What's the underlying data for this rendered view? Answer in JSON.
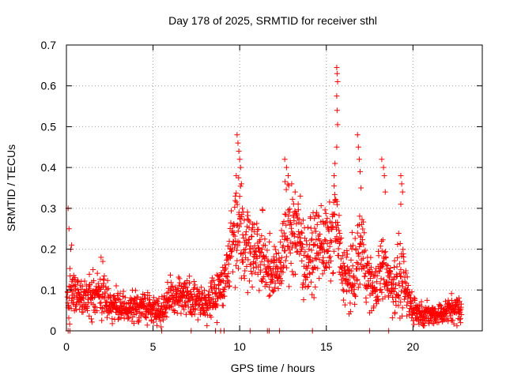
{
  "chart_data": {
    "type": "scatter",
    "title": "Day 178 of 2025, SRMTID for receiver sthl",
    "xlabel": "GPS time / hours",
    "ylabel": "SRMTID / TECUs",
    "xlim": [
      0,
      24
    ],
    "ylim": [
      0,
      0.7
    ],
    "x_ticks": [
      "0",
      "5",
      "10",
      "15",
      "20"
    ],
    "y_ticks": [
      "0",
      "0.1",
      "0.2",
      "0.3",
      "0.4",
      "0.5",
      "0.6",
      "0.7"
    ],
    "grid": true,
    "marker": "plus",
    "color": "#ff0000",
    "profile": [
      [
        0.0,
        0.07,
        0.03
      ],
      [
        0.3,
        0.1,
        0.04
      ],
      [
        0.6,
        0.08,
        0.03
      ],
      [
        1.0,
        0.08,
        0.025
      ],
      [
        1.5,
        0.085,
        0.03
      ],
      [
        2.0,
        0.09,
        0.03
      ],
      [
        2.5,
        0.07,
        0.025
      ],
      [
        3.0,
        0.055,
        0.02
      ],
      [
        3.5,
        0.05,
        0.02
      ],
      [
        4.0,
        0.06,
        0.02
      ],
      [
        4.5,
        0.06,
        0.02
      ],
      [
        5.0,
        0.05,
        0.02
      ],
      [
        5.5,
        0.05,
        0.02
      ],
      [
        6.0,
        0.08,
        0.025
      ],
      [
        6.5,
        0.09,
        0.025
      ],
      [
        7.0,
        0.085,
        0.025
      ],
      [
        7.5,
        0.07,
        0.025
      ],
      [
        8.0,
        0.07,
        0.025
      ],
      [
        8.5,
        0.08,
        0.03
      ],
      [
        9.0,
        0.11,
        0.035
      ],
      [
        9.5,
        0.2,
        0.05
      ],
      [
        9.9,
        0.28,
        0.08
      ],
      [
        10.3,
        0.22,
        0.06
      ],
      [
        10.8,
        0.2,
        0.05
      ],
      [
        11.3,
        0.18,
        0.05
      ],
      [
        11.8,
        0.15,
        0.04
      ],
      [
        12.2,
        0.14,
        0.03
      ],
      [
        12.6,
        0.22,
        0.07
      ],
      [
        13.0,
        0.26,
        0.07
      ],
      [
        13.4,
        0.23,
        0.06
      ],
      [
        13.8,
        0.17,
        0.05
      ],
      [
        14.2,
        0.19,
        0.05
      ],
      [
        14.7,
        0.22,
        0.05
      ],
      [
        15.2,
        0.2,
        0.05
      ],
      [
        15.5,
        0.28,
        0.06
      ],
      [
        15.9,
        0.15,
        0.04
      ],
      [
        16.3,
        0.12,
        0.04
      ],
      [
        16.7,
        0.14,
        0.05
      ],
      [
        17.0,
        0.22,
        0.06
      ],
      [
        17.4,
        0.13,
        0.04
      ],
      [
        17.8,
        0.1,
        0.03
      ],
      [
        18.3,
        0.16,
        0.05
      ],
      [
        18.8,
        0.11,
        0.04
      ],
      [
        19.3,
        0.13,
        0.05
      ],
      [
        19.8,
        0.07,
        0.03
      ],
      [
        20.3,
        0.045,
        0.015
      ],
      [
        20.8,
        0.04,
        0.015
      ],
      [
        21.3,
        0.04,
        0.015
      ],
      [
        21.8,
        0.045,
        0.015
      ],
      [
        22.3,
        0.055,
        0.02
      ],
      [
        22.8,
        0.05,
        0.02
      ]
    ],
    "peaks": [
      [
        9.85,
        0.48
      ],
      [
        9.9,
        0.46
      ],
      [
        9.95,
        0.44
      ],
      [
        10.0,
        0.42
      ],
      [
        10.05,
        0.4
      ],
      [
        9.8,
        0.38
      ],
      [
        10.1,
        0.36
      ],
      [
        9.75,
        0.33
      ],
      [
        10.15,
        0.3
      ],
      [
        12.6,
        0.42
      ],
      [
        12.7,
        0.4
      ],
      [
        12.8,
        0.38
      ],
      [
        13.0,
        0.36
      ],
      [
        13.2,
        0.34
      ],
      [
        13.5,
        0.33
      ],
      [
        15.6,
        0.645
      ],
      [
        15.62,
        0.63
      ],
      [
        15.65,
        0.61
      ],
      [
        15.6,
        0.575
      ],
      [
        15.62,
        0.54
      ],
      [
        15.65,
        0.505
      ],
      [
        15.6,
        0.45
      ],
      [
        15.5,
        0.41
      ],
      [
        15.45,
        0.38
      ],
      [
        16.8,
        0.48
      ],
      [
        16.85,
        0.45
      ],
      [
        16.9,
        0.42
      ],
      [
        16.95,
        0.39
      ],
      [
        17.0,
        0.35
      ],
      [
        18.2,
        0.42
      ],
      [
        18.3,
        0.4
      ],
      [
        18.35,
        0.38
      ],
      [
        18.4,
        0.34
      ],
      [
        19.3,
        0.38
      ],
      [
        19.35,
        0.36
      ],
      [
        19.4,
        0.34
      ],
      [
        19.3,
        0.31
      ],
      [
        0.1,
        0.3
      ],
      [
        0.15,
        0.25
      ],
      [
        0.25,
        0.2
      ],
      [
        0.3,
        0.21
      ],
      [
        2.0,
        0.18
      ],
      [
        2.1,
        0.17
      ]
    ],
    "zeros": [
      0.1,
      0.2,
      5.5,
      7.2,
      8.6,
      8.9,
      9.1,
      10.6,
      11.6,
      11.7,
      12.3,
      14.2,
      17.5,
      18.6
    ]
  }
}
